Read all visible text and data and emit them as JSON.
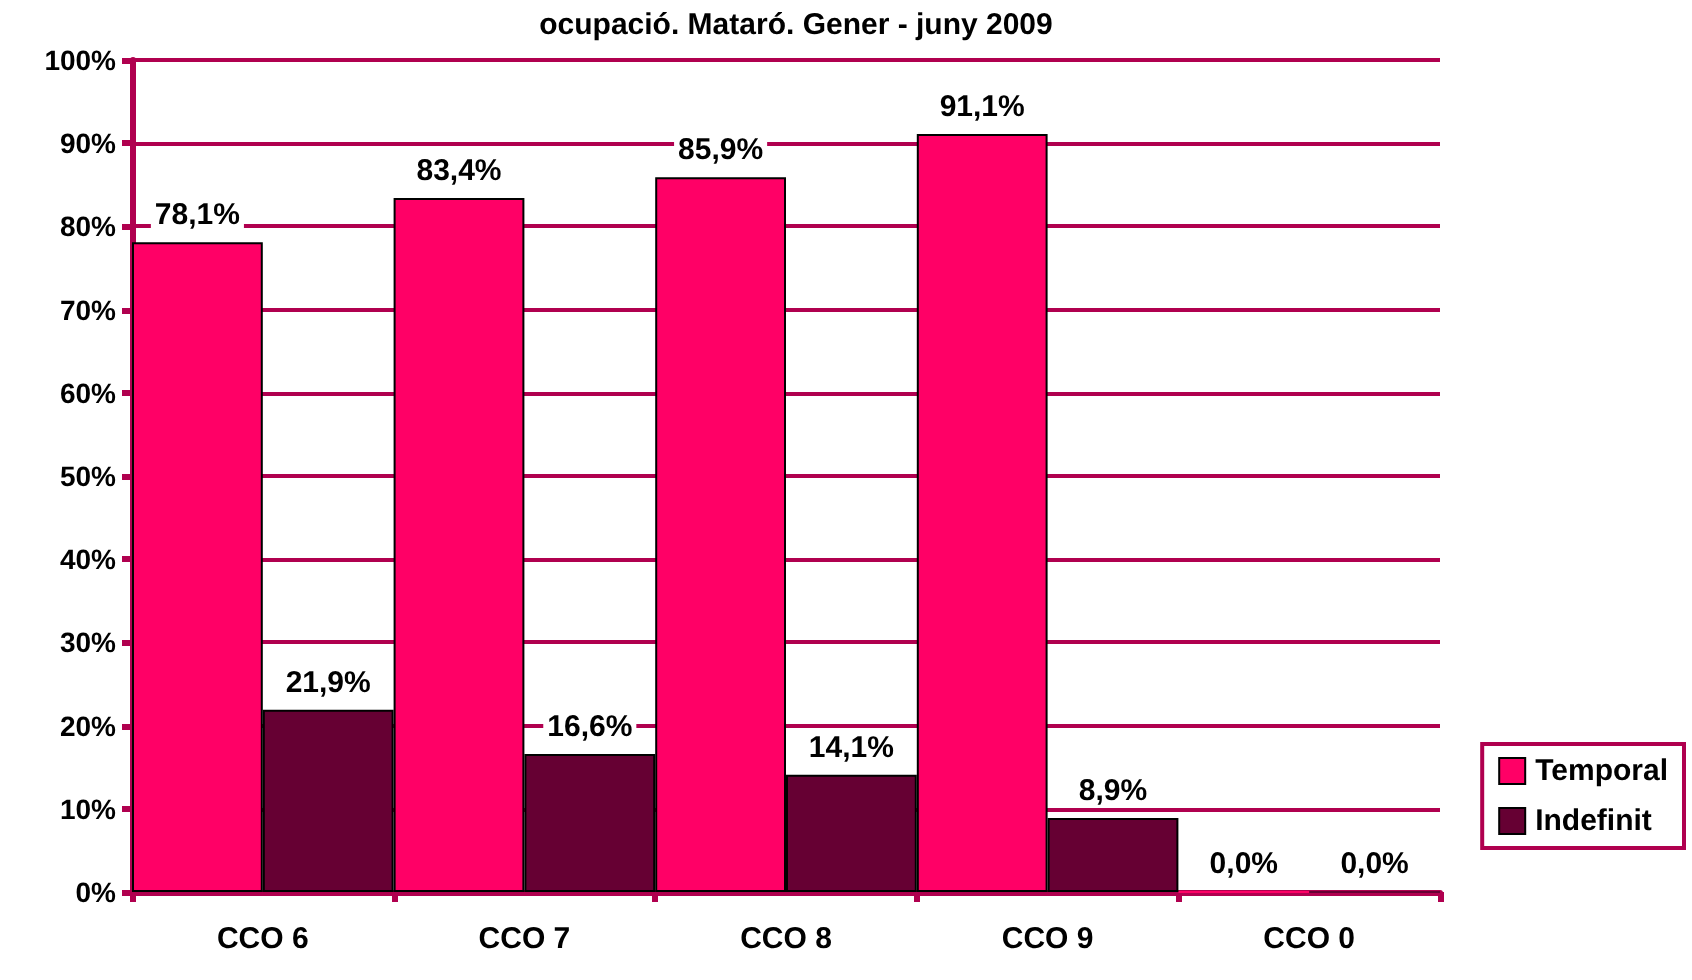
{
  "chart_data": {
    "type": "bar",
    "title": "ocupació. Mataró. Gener - juny 2009",
    "categories": [
      "CCO 6",
      "CCO 7",
      "CCO 8",
      "CCO 9",
      "CCO 0"
    ],
    "series": [
      {
        "name": "Temporal",
        "color": "#ff0066",
        "values": [
          78.1,
          83.4,
          85.9,
          91.1,
          0
        ],
        "value_labels": [
          "78,1%",
          "83,4%",
          "85,9%",
          "91,1%",
          "0,0%"
        ]
      },
      {
        "name": "Indefinit",
        "color": "#660033",
        "values": [
          21.9,
          16.6,
          14.1,
          8.9,
          0
        ],
        "value_labels": [
          "21,9%",
          "16,6%",
          "14,1%",
          "8,9%",
          "0,0%"
        ]
      }
    ],
    "ylim": [
      0,
      100
    ],
    "yticks": [
      {
        "value": 0,
        "label": "0%"
      },
      {
        "value": 10,
        "label": "10%"
      },
      {
        "value": 20,
        "label": "20%"
      },
      {
        "value": 30,
        "label": "30%"
      },
      {
        "value": 40,
        "label": "40%"
      },
      {
        "value": 50,
        "label": "50%"
      },
      {
        "value": 60,
        "label": "60%"
      },
      {
        "value": 70,
        "label": "70%"
      },
      {
        "value": 80,
        "label": "80%"
      },
      {
        "value": 90,
        "label": "90%"
      },
      {
        "value": 100,
        "label": "100%"
      }
    ],
    "grid": "y",
    "legend": "right"
  }
}
